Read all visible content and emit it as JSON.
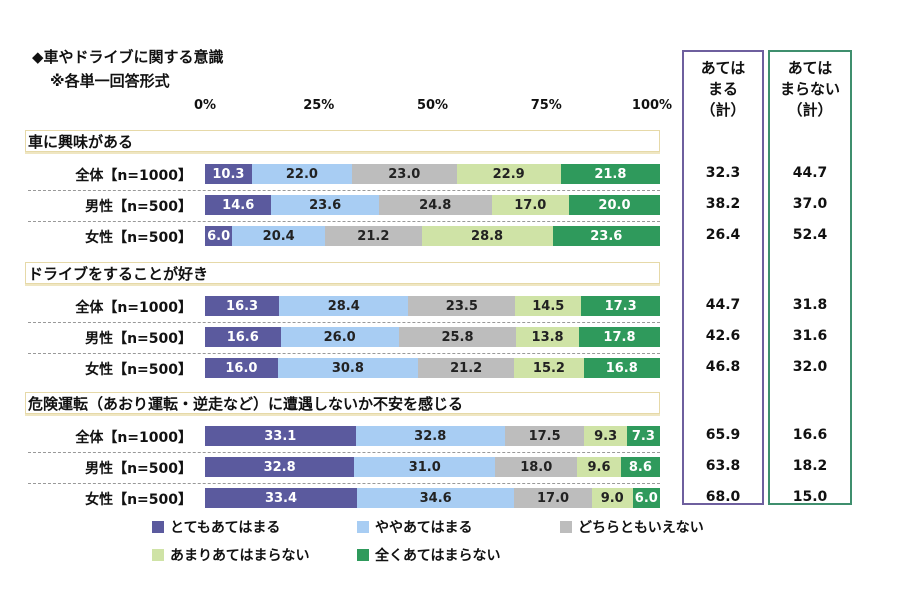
{
  "title": "◆車やドライブに関する意識",
  "subtitle": "※各単一回答形式",
  "axis_ticks": [
    "0%",
    "25%",
    "50%",
    "75%",
    "100%"
  ],
  "summary_headers": {
    "agree": [
      "あては",
      "まる",
      "（計）"
    ],
    "disagree": [
      "あては",
      "まらない",
      "（計）"
    ]
  },
  "colors": {
    "c1": "#5b5a9e",
    "c2": "#a8cdf3",
    "c3": "#bdbdbd",
    "c4": "#cfe3a6",
    "c5": "#2f9a5c",
    "agree_border": "#6e5f9e",
    "disagree_border": "#3f8f6e"
  },
  "chart_data": {
    "type": "bar",
    "stacked": true,
    "orientation": "horizontal",
    "xlim": [
      0,
      100
    ],
    "legend": [
      {
        "key": "c1",
        "label": "とてもあてはまる"
      },
      {
        "key": "c2",
        "label": "ややあてはまる"
      },
      {
        "key": "c3",
        "label": "どちらともいえない"
      },
      {
        "key": "c4",
        "label": "あまりあてはまらない"
      },
      {
        "key": "c5",
        "label": "全くあてはまらない"
      }
    ],
    "sections": [
      {
        "title": "車に興味がある",
        "rows": [
          {
            "label": "全体【n=1000】",
            "values": [
              10.3,
              22.0,
              23.0,
              22.9,
              21.8
            ],
            "agree": "32.3",
            "disagree": "44.7"
          },
          {
            "label": "男性【n=500】",
            "values": [
              14.6,
              23.6,
              24.8,
              17.0,
              20.0
            ],
            "agree": "38.2",
            "disagree": "37.0"
          },
          {
            "label": "女性【n=500】",
            "values": [
              6.0,
              20.4,
              21.2,
              28.8,
              23.6
            ],
            "agree": "26.4",
            "disagree": "52.4"
          }
        ]
      },
      {
        "title": "ドライブをすることが好き",
        "rows": [
          {
            "label": "全体【n=1000】",
            "values": [
              16.3,
              28.4,
              23.5,
              14.5,
              17.3
            ],
            "agree": "44.7",
            "disagree": "31.8"
          },
          {
            "label": "男性【n=500】",
            "values": [
              16.6,
              26.0,
              25.8,
              13.8,
              17.8
            ],
            "agree": "42.6",
            "disagree": "31.6"
          },
          {
            "label": "女性【n=500】",
            "values": [
              16.0,
              30.8,
              21.2,
              15.2,
              16.8
            ],
            "agree": "46.8",
            "disagree": "32.0"
          }
        ]
      },
      {
        "title": "危険運転（あおり運転・逆走など）に遭遇しないか不安を感じる",
        "rows": [
          {
            "label": "全体【n=1000】",
            "values": [
              33.1,
              32.8,
              17.5,
              9.3,
              7.3
            ],
            "agree": "65.9",
            "disagree": "16.6"
          },
          {
            "label": "男性【n=500】",
            "values": [
              32.8,
              31.0,
              18.0,
              9.6,
              8.6
            ],
            "agree": "63.8",
            "disagree": "18.2"
          },
          {
            "label": "女性【n=500】",
            "values": [
              33.4,
              34.6,
              17.0,
              9.0,
              6.0
            ],
            "agree": "68.0",
            "disagree": "15.0"
          }
        ]
      }
    ]
  }
}
